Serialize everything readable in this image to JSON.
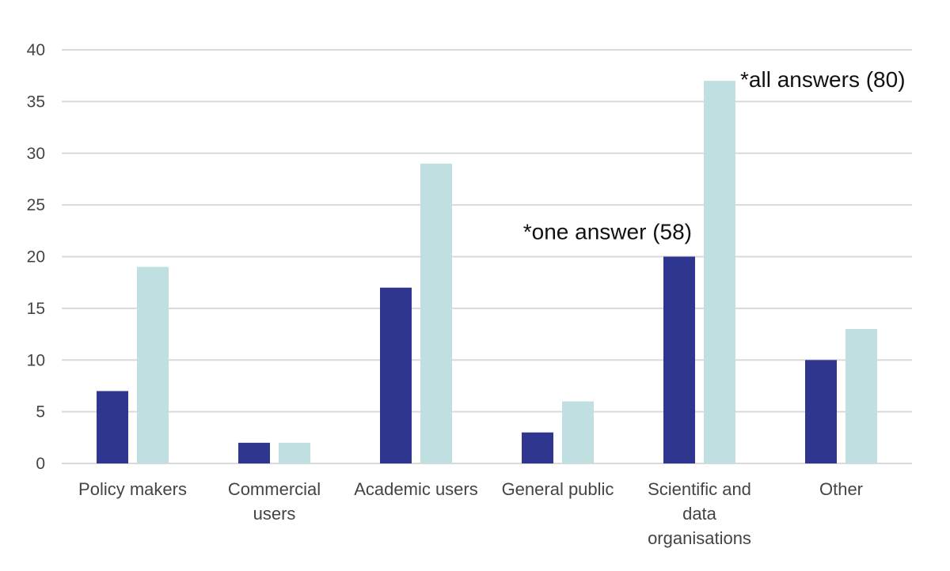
{
  "chart_data": {
    "type": "bar",
    "title": "",
    "xlabel": "",
    "ylabel": "",
    "ylim": [
      0,
      40
    ],
    "yticks": [
      0,
      5,
      10,
      15,
      20,
      25,
      30,
      35,
      40
    ],
    "grid": true,
    "categories": [
      [
        "Policy makers"
      ],
      [
        "Commercial",
        "users"
      ],
      [
        "Academic users"
      ],
      [
        "General public"
      ],
      [
        "Scientific and",
        "data",
        "organisations"
      ],
      [
        "Other"
      ]
    ],
    "series": [
      {
        "name": "*one answer (58)",
        "color": "#2e3690",
        "values": [
          7,
          2,
          17,
          3,
          20,
          10
        ]
      },
      {
        "name": "*all answers (80)",
        "color": "#c0dfe1",
        "values": [
          19,
          2,
          29,
          6,
          37,
          13
        ]
      }
    ],
    "annotations": [
      {
        "text": "*one answer (58)",
        "series": 0,
        "category": 4
      },
      {
        "text": "*all answers (80)",
        "series": 1,
        "category": 4
      }
    ]
  }
}
